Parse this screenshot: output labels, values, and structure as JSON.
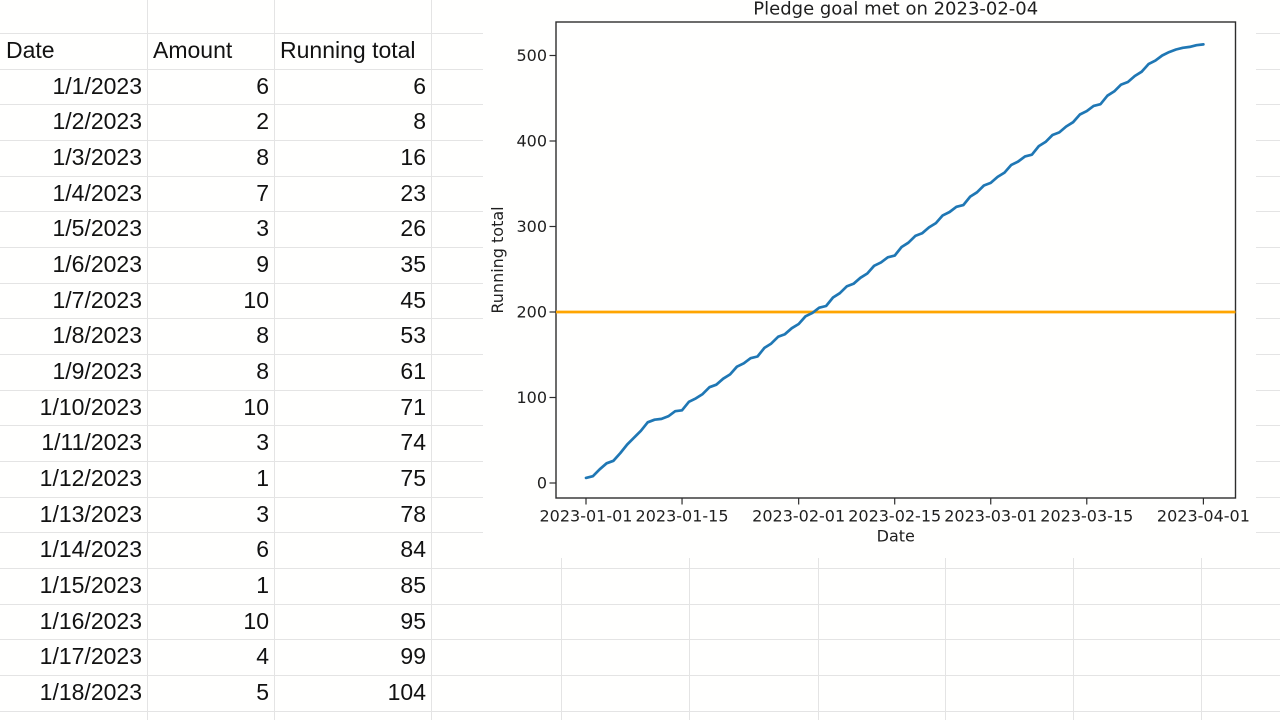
{
  "table": {
    "headers": [
      "Date",
      "Amount",
      "Running total"
    ],
    "rows": [
      {
        "date": "1/1/2023",
        "amount": 6,
        "total": 6
      },
      {
        "date": "1/2/2023",
        "amount": 2,
        "total": 8
      },
      {
        "date": "1/3/2023",
        "amount": 8,
        "total": 16
      },
      {
        "date": "1/4/2023",
        "amount": 7,
        "total": 23
      },
      {
        "date": "1/5/2023",
        "amount": 3,
        "total": 26
      },
      {
        "date": "1/6/2023",
        "amount": 9,
        "total": 35
      },
      {
        "date": "1/7/2023",
        "amount": 10,
        "total": 45
      },
      {
        "date": "1/8/2023",
        "amount": 8,
        "total": 53
      },
      {
        "date": "1/9/2023",
        "amount": 8,
        "total": 61
      },
      {
        "date": "1/10/2023",
        "amount": 10,
        "total": 71
      },
      {
        "date": "1/11/2023",
        "amount": 3,
        "total": 74
      },
      {
        "date": "1/12/2023",
        "amount": 1,
        "total": 75
      },
      {
        "date": "1/13/2023",
        "amount": 3,
        "total": 78
      },
      {
        "date": "1/14/2023",
        "amount": 6,
        "total": 84
      },
      {
        "date": "1/15/2023",
        "amount": 1,
        "total": 85
      },
      {
        "date": "1/16/2023",
        "amount": 10,
        "total": 95
      },
      {
        "date": "1/17/2023",
        "amount": 4,
        "total": 99
      },
      {
        "date": "1/18/2023",
        "amount": 5,
        "total": 104
      }
    ]
  },
  "chart_data": {
    "type": "line",
    "title": "Pledge goal met on 2023-02-04",
    "xlabel": "Date",
    "ylabel": "Running total",
    "goal_met_date": "2023-02-04",
    "x_start_date": "2023-01-01",
    "x_end_date": "2023-04-01",
    "x_tick_labels": [
      "2023-01-01",
      "2023-01-15",
      "2023-02-01",
      "2023-02-15",
      "2023-03-01",
      "2023-03-15",
      "2023-04-01"
    ],
    "x_tick_days": [
      1,
      15,
      32,
      46,
      60,
      74,
      91
    ],
    "y_ticks": [
      0,
      100,
      200,
      300,
      400,
      500
    ],
    "ylim": [
      0,
      540
    ],
    "grid": false,
    "legend": "none",
    "series": [
      {
        "name": "Running total",
        "color": "#1f77b4",
        "values": [
          6,
          8,
          16,
          23,
          26,
          35,
          45,
          53,
          61,
          71,
          74,
          75,
          78,
          84,
          85,
          95,
          99,
          104,
          112,
          115,
          122,
          127,
          136,
          140,
          146,
          148,
          158,
          163,
          171,
          174,
          181,
          186,
          195,
          199,
          205,
          207,
          217,
          222,
          230,
          233,
          240,
          245,
          254,
          258,
          264,
          266,
          276,
          281,
          289,
          292,
          299,
          304,
          313,
          317,
          323,
          325,
          335,
          340,
          348,
          351,
          358,
          363,
          372,
          376,
          382,
          384,
          394,
          399,
          407,
          410,
          417,
          422,
          431,
          435,
          441,
          443,
          453,
          458,
          466,
          469,
          476,
          481,
          490,
          494,
          500,
          504,
          507,
          509,
          510,
          512,
          513
        ]
      },
      {
        "name": "Pledge goal",
        "type": "hline",
        "color": "#ffa500",
        "value": 200
      }
    ]
  },
  "colors": {
    "line_blue": "#1f77b4",
    "goal_orange": "#ffa500",
    "gridline": "#e4e4e4",
    "text": "#121212"
  }
}
